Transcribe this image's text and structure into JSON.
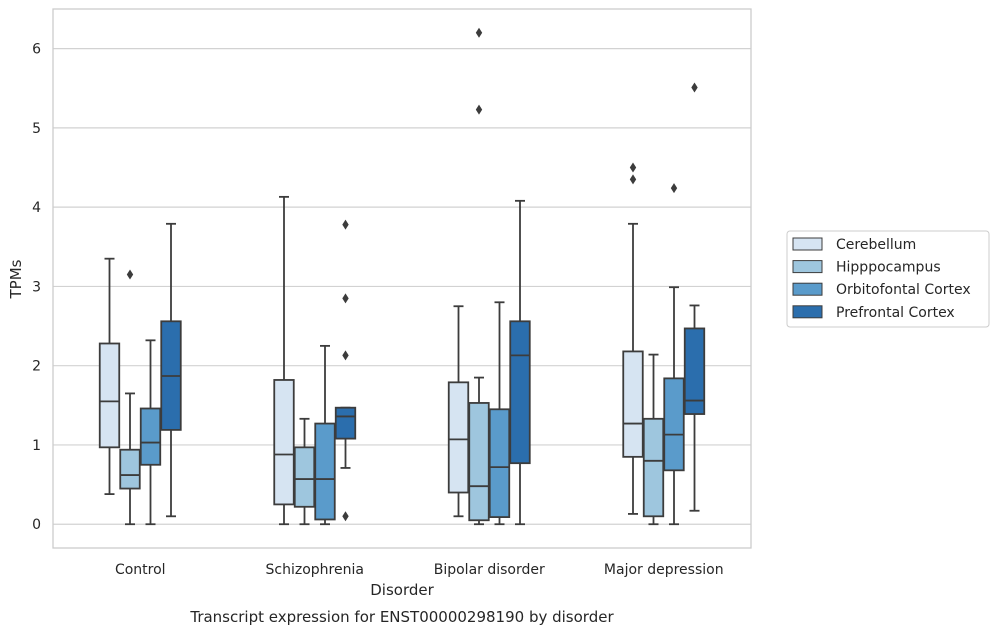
{
  "caption": "Transcript expression for ENST00000298190 by disorder",
  "chart_data": {
    "type": "box",
    "xlabel": "Disorder",
    "ylabel": "TPMs",
    "ylim": [
      -0.3,
      6.5
    ],
    "yticks": [
      0,
      1,
      2,
      3,
      4,
      5,
      6
    ],
    "grid": "horizontal",
    "legend_position": "right",
    "categories": [
      "Control",
      "Schizophrenia",
      "Bipolar disorder",
      "Major depression"
    ],
    "series": [
      {
        "name": "Cerebellum",
        "color": "#d6e4f2",
        "boxes": [
          {
            "whislo": 0.38,
            "q1": 0.97,
            "med": 1.55,
            "q3": 2.28,
            "whishi": 3.35,
            "fliers": []
          },
          {
            "whislo": 0.0,
            "q1": 0.25,
            "med": 0.88,
            "q3": 1.82,
            "whishi": 4.13,
            "fliers": []
          },
          {
            "whislo": 0.1,
            "q1": 0.4,
            "med": 1.07,
            "q3": 1.79,
            "whishi": 2.75,
            "fliers": []
          },
          {
            "whislo": 0.13,
            "q1": 0.85,
            "med": 1.27,
            "q3": 2.18,
            "whishi": 3.79,
            "fliers": [
              4.35,
              4.5
            ]
          }
        ]
      },
      {
        "name": "Hipppocampus",
        "color": "#9ec6de",
        "boxes": [
          {
            "whislo": 0.0,
            "q1": 0.45,
            "med": 0.62,
            "q3": 0.94,
            "whishi": 1.65,
            "fliers": [
              3.15
            ]
          },
          {
            "whislo": 0.0,
            "q1": 0.22,
            "med": 0.57,
            "q3": 0.97,
            "whishi": 1.33,
            "fliers": []
          },
          {
            "whislo": 0.0,
            "q1": 0.05,
            "med": 0.48,
            "q3": 1.53,
            "whishi": 1.85,
            "fliers": [
              5.23,
              6.2
            ]
          },
          {
            "whislo": 0.0,
            "q1": 0.1,
            "med": 0.8,
            "q3": 1.33,
            "whishi": 2.14,
            "fliers": []
          }
        ]
      },
      {
        "name": "Orbitofontal Cortex",
        "color": "#5a9bcb",
        "boxes": [
          {
            "whislo": 0.0,
            "q1": 0.75,
            "med": 1.03,
            "q3": 1.46,
            "whishi": 2.32,
            "fliers": []
          },
          {
            "whislo": 0.0,
            "q1": 0.06,
            "med": 0.57,
            "q3": 1.27,
            "whishi": 2.25,
            "fliers": []
          },
          {
            "whislo": 0.0,
            "q1": 0.09,
            "med": 0.72,
            "q3": 1.45,
            "whishi": 2.8,
            "fliers": []
          },
          {
            "whislo": 0.0,
            "q1": 0.68,
            "med": 1.13,
            "q3": 1.84,
            "whishi": 2.99,
            "fliers": [
              4.24
            ]
          }
        ]
      },
      {
        "name": "Prefrontal Cortex",
        "color": "#2b6ead",
        "boxes": [
          {
            "whislo": 0.1,
            "q1": 1.19,
            "med": 1.87,
            "q3": 2.56,
            "whishi": 3.79,
            "fliers": []
          },
          {
            "whislo": 0.71,
            "q1": 1.08,
            "med": 1.36,
            "q3": 1.47,
            "whishi": 1.47,
            "fliers": [
              0.1,
              2.13,
              2.85,
              3.78
            ]
          },
          {
            "whislo": 0.0,
            "q1": 0.77,
            "med": 2.13,
            "q3": 2.56,
            "whishi": 4.08,
            "fliers": []
          },
          {
            "whislo": 0.17,
            "q1": 1.39,
            "med": 1.56,
            "q3": 2.47,
            "whishi": 2.76,
            "fliers": [
              5.51
            ]
          }
        ]
      }
    ]
  }
}
